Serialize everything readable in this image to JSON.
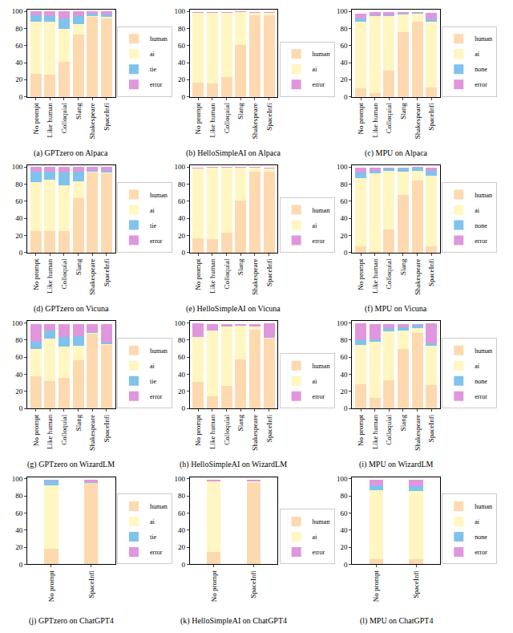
{
  "chart_data": [
    {
      "type": "bar",
      "title": "(a) GPTzero on Alpaca",
      "stacked": true,
      "legend": "right",
      "grid": false,
      "categories": [
        "No prompt",
        "Like human",
        "Colloquial",
        "Slang",
        "Shakespeare",
        "SpaceInfi"
      ],
      "ylim": [
        0,
        102
      ],
      "yticks": [
        0,
        20,
        40,
        60,
        80,
        100
      ],
      "series": [
        {
          "name": "human",
          "color": "#fdd9b0",
          "values": [
            27,
            26,
            41,
            73,
            93,
            92
          ]
        },
        {
          "name": "ai",
          "color": "#fff6c2",
          "values": [
            61,
            62,
            38,
            12,
            1,
            1
          ]
        },
        {
          "name": "tie",
          "color": "#7fc3ec",
          "values": [
            7,
            6,
            13,
            9,
            3,
            3
          ]
        },
        {
          "name": "error",
          "color": "#e096dc",
          "values": [
            5,
            6,
            8,
            6,
            3,
            4
          ]
        }
      ]
    },
    {
      "type": "bar",
      "title": "(b) HelloSimpleAI on Alpaca",
      "stacked": true,
      "legend": "right",
      "grid": false,
      "categories": [
        "No prompt",
        "Like human",
        "Colloquial",
        "Slang",
        "Shakespeare",
        "SpaceInfi"
      ],
      "ylim": [
        0,
        102
      ],
      "yticks": [
        0,
        20,
        40,
        60,
        80,
        100
      ],
      "series": [
        {
          "name": "human",
          "color": "#fdd9b0",
          "values": [
            17,
            16,
            23,
            61,
            95,
            95
          ]
        },
        {
          "name": "ai",
          "color": "#fff6c2",
          "values": [
            81,
            82,
            75,
            38,
            3,
            3
          ]
        },
        {
          "name": "error",
          "color": "#e096dc",
          "values": [
            1,
            1,
            1,
            1,
            1,
            1
          ]
        }
      ]
    },
    {
      "type": "bar",
      "title": "(c) MPU on Alpaca",
      "stacked": true,
      "legend": "right",
      "grid": false,
      "categories": [
        "No prompt",
        "Like human",
        "Colloquial",
        "Slang",
        "Shakespeare",
        "SpaceInfi"
      ],
      "ylim": [
        0,
        102
      ],
      "yticks": [
        0,
        20,
        40,
        60,
        80,
        100
      ],
      "series": [
        {
          "name": "human",
          "color": "#fdd9b0",
          "values": [
            10,
            4,
            31,
            76,
            88,
            11
          ]
        },
        {
          "name": "ai",
          "color": "#fff6c2",
          "values": [
            78,
            90,
            63,
            20,
            9,
            77
          ]
        },
        {
          "name": "none",
          "color": "#7fc3ec",
          "values": [
            4,
            1,
            1,
            1,
            1,
            3
          ]
        },
        {
          "name": "error",
          "color": "#e096dc",
          "values": [
            5,
            4,
            4,
            2,
            1,
            7
          ]
        }
      ]
    },
    {
      "type": "bar",
      "title": "(d) GPTzero on Vicuna",
      "stacked": true,
      "legend": "right",
      "grid": false,
      "categories": [
        "No prompt",
        "Like human",
        "Colloquial",
        "Slang",
        "Shakespeare",
        "SpaceInfi"
      ],
      "ylim": [
        0,
        102
      ],
      "yticks": [
        0,
        20,
        40,
        60,
        80,
        100
      ],
      "series": [
        {
          "name": "human",
          "color": "#fdd9b0",
          "values": [
            25,
            25,
            25,
            64,
            94,
            93
          ]
        },
        {
          "name": "ai",
          "color": "#fff6c2",
          "values": [
            57,
            60,
            54,
            19,
            1,
            1
          ]
        },
        {
          "name": "tie",
          "color": "#7fc3ec",
          "values": [
            13,
            10,
            15,
            12,
            1,
            2
          ]
        },
        {
          "name": "error",
          "color": "#e096dc",
          "values": [
            5,
            5,
            6,
            5,
            4,
            4
          ]
        }
      ]
    },
    {
      "type": "bar",
      "title": "(e) HelloSimpleAI on Vicuna",
      "stacked": true,
      "legend": "right",
      "grid": false,
      "categories": [
        "No prompt",
        "Like human",
        "Colloquial",
        "Slang",
        "Shakespeare",
        "SpaceInfi"
      ],
      "ylim": [
        0,
        102
      ],
      "yticks": [
        0,
        20,
        40,
        60,
        80,
        100
      ],
      "series": [
        {
          "name": "human",
          "color": "#fdd9b0",
          "values": [
            17,
            16,
            23,
            61,
            95,
            95
          ]
        },
        {
          "name": "ai",
          "color": "#fff6c2",
          "values": [
            81,
            83,
            76,
            38,
            4,
            3
          ]
        },
        {
          "name": "error",
          "color": "#e096dc",
          "values": [
            1,
            1,
            1,
            1,
            1,
            1
          ]
        }
      ]
    },
    {
      "type": "bar",
      "title": "(f) MPU on Vicuna",
      "stacked": true,
      "legend": "right",
      "grid": false,
      "categories": [
        "No prompt",
        "Like human",
        "Colloquial",
        "Slang",
        "Shakespeare",
        "SpaceInfi"
      ],
      "ylim": [
        0,
        102
      ],
      "yticks": [
        0,
        20,
        40,
        60,
        80,
        100
      ],
      "series": [
        {
          "name": "human",
          "color": "#fdd9b0",
          "values": [
            7,
            2,
            27,
            67,
            84,
            7
          ]
        },
        {
          "name": "ai",
          "color": "#fff6c2",
          "values": [
            80,
            91,
            69,
            28,
            12,
            83
          ]
        },
        {
          "name": "none",
          "color": "#7fc3ec",
          "values": [
            7,
            3,
            2,
            3,
            3,
            6
          ]
        },
        {
          "name": "error",
          "color": "#e096dc",
          "values": [
            5,
            3,
            1,
            1,
            1,
            3
          ]
        }
      ]
    },
    {
      "type": "bar",
      "title": "(g) GPTzero on WizardLM",
      "stacked": true,
      "legend": "right",
      "grid": false,
      "categories": [
        "No prompt",
        "Like human",
        "Colloquial",
        "Slang",
        "Shakespeare",
        "SpaceInfi"
      ],
      "ylim": [
        0,
        102
      ],
      "yticks": [
        0,
        20,
        40,
        60,
        80,
        100
      ],
      "series": [
        {
          "name": "human",
          "color": "#fdd9b0",
          "values": [
            38,
            32,
            36,
            56,
            87,
            74
          ]
        },
        {
          "name": "ai",
          "color": "#fff6c2",
          "values": [
            32,
            50,
            36,
            17,
            1,
            1
          ]
        },
        {
          "name": "tie",
          "color": "#7fc3ec",
          "values": [
            8,
            9,
            12,
            12,
            1,
            2
          ]
        },
        {
          "name": "error",
          "color": "#e096dc",
          "values": [
            21,
            8,
            15,
            14,
            10,
            22
          ]
        }
      ]
    },
    {
      "type": "bar",
      "title": "(h) HelloSimpleAI on WizardLM",
      "stacked": true,
      "legend": "right",
      "grid": false,
      "categories": [
        "No prompt",
        "Like human",
        "Colloquial",
        "Slang",
        "Shakespeare",
        "SpaceInfi"
      ],
      "ylim": [
        0,
        102
      ],
      "yticks": [
        0,
        20,
        40,
        60,
        80,
        100
      ],
      "series": [
        {
          "name": "human",
          "color": "#fdd9b0",
          "values": [
            31,
            14,
            26,
            57,
            92,
            82
          ]
        },
        {
          "name": "ai",
          "color": "#fff6c2",
          "values": [
            53,
            77,
            70,
            40,
            4,
            1
          ]
        },
        {
          "name": "error",
          "color": "#e096dc",
          "values": [
            16,
            8,
            3,
            2,
            3,
            17
          ]
        }
      ]
    },
    {
      "type": "bar",
      "title": "(i) MPU on WizardLM",
      "stacked": true,
      "legend": "right",
      "grid": false,
      "categories": [
        "No prompt",
        "Like human",
        "Colloquial",
        "Slang",
        "Shakespeare",
        "SpaceInfi"
      ],
      "ylim": [
        0,
        102
      ],
      "yticks": [
        0,
        20,
        40,
        60,
        80,
        100
      ],
      "series": [
        {
          "name": "human",
          "color": "#fdd9b0",
          "values": [
            28,
            12,
            33,
            70,
            88,
            27
          ]
        },
        {
          "name": "ai",
          "color": "#fff6c2",
          "values": [
            46,
            66,
            57,
            21,
            6,
            46
          ]
        },
        {
          "name": "none",
          "color": "#7fc3ec",
          "values": [
            6,
            3,
            4,
            4,
            4,
            3
          ]
        },
        {
          "name": "error",
          "color": "#e096dc",
          "values": [
            20,
            18,
            5,
            4,
            1,
            24
          ]
        }
      ]
    },
    {
      "type": "bar",
      "title": "(j) GPTzero on ChatGPT4",
      "stacked": true,
      "legend": "right",
      "grid": false,
      "categories": [
        "No prompt",
        "SpaceInfi"
      ],
      "ylim": [
        0,
        102
      ],
      "yticks": [
        0,
        20,
        40,
        60,
        80,
        100
      ],
      "series": [
        {
          "name": "human",
          "color": "#fdd9b0",
          "values": [
            18,
            95
          ]
        },
        {
          "name": "ai",
          "color": "#fff6c2",
          "values": [
            74,
            0
          ]
        },
        {
          "name": "tie",
          "color": "#7fc3ec",
          "values": [
            6,
            1
          ]
        },
        {
          "name": "error",
          "color": "#e096dc",
          "values": [
            1,
            3
          ]
        }
      ]
    },
    {
      "type": "bar",
      "title": "(k) HelloSimpleAI on ChatGPT4",
      "stacked": true,
      "legend": "right",
      "grid": false,
      "categories": [
        "No prompt",
        "SpaceInfi"
      ],
      "ylim": [
        0,
        102
      ],
      "yticks": [
        0,
        20,
        40,
        60,
        80,
        100
      ],
      "series": [
        {
          "name": "human",
          "color": "#fdd9b0",
          "values": [
            14,
            95
          ]
        },
        {
          "name": "ai",
          "color": "#fff6c2",
          "values": [
            83,
            2
          ]
        },
        {
          "name": "error",
          "color": "#e096dc",
          "values": [
            2,
            2
          ]
        }
      ]
    },
    {
      "type": "bar",
      "title": "(l) MPU on ChatGPT4",
      "stacked": true,
      "legend": "right",
      "grid": false,
      "categories": [
        "No prompt",
        "SpaceInfi"
      ],
      "ylim": [
        0,
        102
      ],
      "yticks": [
        0,
        20,
        40,
        60,
        80,
        100
      ],
      "series": [
        {
          "name": "human",
          "color": "#fdd9b0",
          "values": [
            6,
            6
          ]
        },
        {
          "name": "ai",
          "color": "#fff6c2",
          "values": [
            81,
            80
          ]
        },
        {
          "name": "none",
          "color": "#7fc3ec",
          "values": [
            5,
            5
          ]
        },
        {
          "name": "error",
          "color": "#e096dc",
          "values": [
            7,
            8
          ]
        }
      ]
    }
  ]
}
